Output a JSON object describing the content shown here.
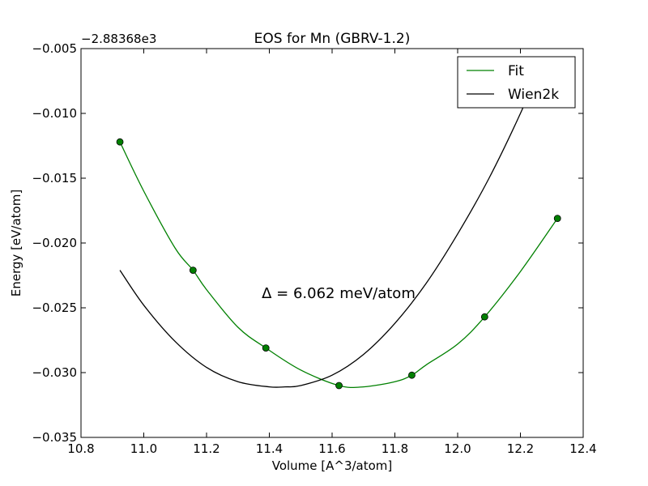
{
  "chart_data": {
    "type": "line",
    "title": "EOS for Mn (GBRV-1.2)",
    "xlabel": "Volume [A^3/atom]",
    "ylabel": "Energy [eV/atom]",
    "y_offset_label": "−2.88368e3",
    "annotation": "Δ = 6.062 meV/atom",
    "xlim": [
      10.8,
      12.4
    ],
    "ylim": [
      -0.035,
      -0.005
    ],
    "x_ticks": [
      10.8,
      11.0,
      11.2,
      11.4,
      11.6,
      11.8,
      12.0,
      12.2,
      12.4
    ],
    "y_ticks": [
      -0.035,
      -0.03,
      -0.025,
      -0.02,
      -0.015,
      -0.01,
      -0.005
    ],
    "x_tick_labels": [
      "10.8",
      "11.0",
      "11.2",
      "11.4",
      "11.6",
      "11.8",
      "12.0",
      "12.2",
      "12.4"
    ],
    "y_tick_labels": [
      "−0.035",
      "−0.030",
      "−0.025",
      "−0.020",
      "−0.015",
      "−0.010",
      "−0.005"
    ],
    "grid": false,
    "legend_position": "top-right",
    "series": [
      {
        "name": "Fit",
        "kind": "line",
        "color": "#008000",
        "x": [
          10.924,
          11.0,
          11.1,
          11.157,
          11.2,
          11.3,
          11.389,
          11.5,
          11.622,
          11.7,
          11.8,
          11.854,
          11.9,
          12.0,
          12.086,
          12.2,
          12.318
        ],
        "y": [
          -0.0122,
          -0.016,
          -0.0204,
          -0.0221,
          -0.0236,
          -0.0265,
          -0.0281,
          -0.0298,
          -0.031,
          -0.0311,
          -0.0307,
          -0.0302,
          -0.0294,
          -0.0278,
          -0.0257,
          -0.0222,
          -0.0181
        ]
      },
      {
        "name": "",
        "kind": "points",
        "color": "#008000",
        "x": [
          10.924,
          11.157,
          11.389,
          11.622,
          11.854,
          12.086,
          12.318
        ],
        "y": [
          -0.0122,
          -0.0221,
          -0.0281,
          -0.031,
          -0.0302,
          -0.0257,
          -0.0181
        ]
      },
      {
        "name": "Wien2k",
        "kind": "line",
        "color": "#000000",
        "x": [
          10.924,
          11.0,
          11.1,
          11.2,
          11.3,
          11.4,
          11.45,
          11.5,
          11.6,
          11.7,
          11.8,
          11.9,
          12.0,
          12.1,
          12.2,
          12.27
        ],
        "y": [
          -0.0221,
          -0.0248,
          -0.0276,
          -0.0296,
          -0.0307,
          -0.0311,
          -0.0311,
          -0.031,
          -0.0302,
          -0.0286,
          -0.0262,
          -0.0231,
          -0.0193,
          -0.015,
          -0.01,
          -0.006
        ]
      }
    ]
  }
}
